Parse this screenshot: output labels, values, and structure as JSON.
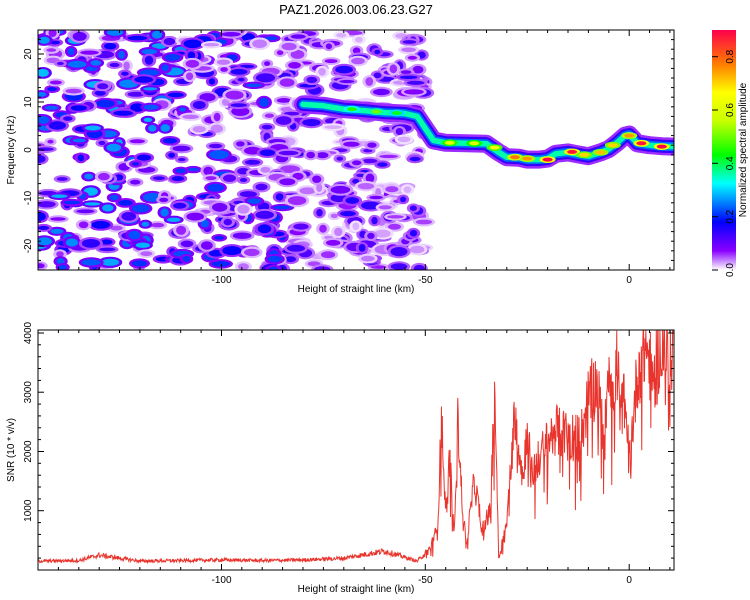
{
  "title": "PAZ1.2026.003.06.23.G27",
  "chart_data": [
    {
      "type": "heatmap",
      "xlabel": "Height of straight line (km)",
      "ylabel": "Frequency (Hz)",
      "xlim": [
        -145,
        11
      ],
      "ylim": [
        -25,
        25
      ],
      "xticks": [
        -100,
        -50,
        0
      ],
      "xtick_labels": [
        "-100",
        "-50",
        "0"
      ],
      "yticks": [
        -20,
        -10,
        0,
        10,
        20
      ],
      "ytick_labels": [
        "-20",
        "-10",
        "0",
        "10",
        "20"
      ],
      "colorbar": {
        "label": "Normalized spectral amplitude",
        "range": [
          0.0,
          0.9
        ],
        "ticks": [
          0.0,
          0.2,
          0.4,
          0.6,
          0.8
        ],
        "tick_labels": [
          "0.0",
          "0.2",
          "0.4",
          "0.6",
          "0.8"
        ]
      },
      "ridge": {
        "x": [
          -80,
          -75,
          -70,
          -65,
          -60,
          -55,
          -52,
          -50,
          -48,
          -45,
          -40,
          -35,
          -32,
          -30,
          -27,
          -25,
          -22,
          -20,
          -18,
          -15,
          -12,
          -10,
          -7,
          -5,
          -3,
          -1,
          0,
          2,
          5,
          8,
          11
        ],
        "y": [
          9.5,
          9.2,
          8.5,
          8.2,
          7.8,
          7.6,
          7.0,
          4.5,
          2.0,
          1.5,
          1.4,
          1.3,
          -0.5,
          -1.5,
          -1.6,
          -2.0,
          -2.0,
          -1.8,
          -0.8,
          -0.5,
          -1.0,
          -1.3,
          -0.5,
          0.2,
          1.5,
          3.0,
          3.2,
          1.4,
          1.0,
          0.8,
          0.7
        ],
        "peaks": [
          {
            "x": -68,
            "y": 8.5,
            "v": 0.45
          },
          {
            "x": -62,
            "y": 8.0,
            "v": 0.5
          },
          {
            "x": -57,
            "y": 7.7,
            "v": 0.42
          },
          {
            "x": -44,
            "y": 1.5,
            "v": 0.62
          },
          {
            "x": -38,
            "y": 1.4,
            "v": 0.6
          },
          {
            "x": -33,
            "y": 0.5,
            "v": 0.65
          },
          {
            "x": -28,
            "y": -1.5,
            "v": 0.78
          },
          {
            "x": -25,
            "y": -1.8,
            "v": 0.75
          },
          {
            "x": -20,
            "y": -2.0,
            "v": 0.9
          },
          {
            "x": -14,
            "y": -0.4,
            "v": 0.88
          },
          {
            "x": -11,
            "y": -1.0,
            "v": 0.7
          },
          {
            "x": -7,
            "y": -0.5,
            "v": 0.72
          },
          {
            "x": -4,
            "y": 1.0,
            "v": 0.7
          },
          {
            "x": 0,
            "y": 3.0,
            "v": 0.75
          },
          {
            "x": 3,
            "y": 1.4,
            "v": 0.88
          },
          {
            "x": 8,
            "y": 0.7,
            "v": 0.9
          }
        ]
      },
      "background_noise": {
        "x_range": [
          -145,
          -50
        ],
        "y_range": [
          -25,
          25
        ],
        "max_value": 0.25
      }
    },
    {
      "type": "line",
      "xlabel": "Height of straight line (km)",
      "ylabel": "SNR (10 * v/v)",
      "xlim": [
        -145,
        11
      ],
      "ylim": [
        0,
        4050
      ],
      "xticks": [
        -100,
        -50,
        0
      ],
      "xtick_labels": [
        "-100",
        "-50",
        "0"
      ],
      "yticks": [
        1000,
        2000,
        3000,
        4000
      ],
      "ytick_labels": [
        "1000",
        "2000",
        "3000",
        "4000"
      ],
      "series": [
        {
          "name": "SNR",
          "color": "#e8342c",
          "envelope": {
            "x": [
              -145,
              -135,
              -130,
              -120,
              -110,
              -100,
              -90,
              -80,
              -70,
              -60,
              -52,
              -49,
              -47,
              -46,
              -45,
              -44,
              -43,
              -42,
              -41,
              -40,
              -38,
              -36,
              -34,
              -33,
              -32,
              -30,
              -28,
              -26,
              -25,
              -24,
              -22,
              -20,
              -18,
              -17,
              -15,
              -12,
              -10,
              -8,
              -6,
              -5,
              -4,
              -3,
              -2,
              -1,
              0,
              2,
              4,
              6,
              8,
              10,
              11
            ],
            "y": [
              150,
              160,
              250,
              150,
              160,
              170,
              160,
              170,
              200,
              320,
              150,
              350,
              700,
              2600,
              900,
              1900,
              600,
              2550,
              1200,
              400,
              1500,
              700,
              1000,
              3200,
              200,
              800,
              2700,
              1500,
              2500,
              1600,
              1900,
              2150,
              2400,
              2300,
              2300,
              2200,
              2900,
              3150,
              2200,
              3700,
              2800,
              3500,
              2600,
              3000,
              1800,
              3300,
              3800,
              3200,
              3900,
              3500,
              3950
            ]
          }
        }
      ]
    }
  ]
}
